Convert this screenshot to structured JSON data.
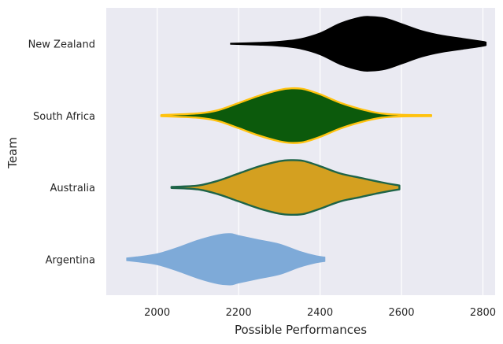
{
  "chart_data": {
    "type": "violin",
    "orientation": "horizontal",
    "title": "",
    "xlabel": "Possible Performances",
    "ylabel": "Team",
    "xlim": [
      1875,
      2830
    ],
    "xticks": [
      2000,
      2200,
      2400,
      2600,
      2800
    ],
    "grid": true,
    "background": "#eaeaf2",
    "series": [
      {
        "name": "New Zealand",
        "fill": "#000000",
        "edge": "#000000",
        "profile": [
          [
            2180,
            0.02
          ],
          [
            2250,
            0.05
          ],
          [
            2300,
            0.09
          ],
          [
            2350,
            0.18
          ],
          [
            2400,
            0.4
          ],
          [
            2450,
            0.76
          ],
          [
            2500,
            0.98
          ],
          [
            2525,
            1.0
          ],
          [
            2560,
            0.94
          ],
          [
            2600,
            0.74
          ],
          [
            2650,
            0.48
          ],
          [
            2700,
            0.31
          ],
          [
            2750,
            0.2
          ],
          [
            2800,
            0.09
          ],
          [
            2808,
            0.06
          ]
        ]
      },
      {
        "name": "South Africa",
        "fill": "#0c5a0c",
        "edge": "#ffc20e",
        "profile": [
          [
            2010,
            0.02
          ],
          [
            2100,
            0.08
          ],
          [
            2150,
            0.2
          ],
          [
            2200,
            0.46
          ],
          [
            2250,
            0.73
          ],
          [
            2300,
            0.94
          ],
          [
            2330,
            1.0
          ],
          [
            2360,
            0.97
          ],
          [
            2400,
            0.78
          ],
          [
            2450,
            0.47
          ],
          [
            2500,
            0.24
          ],
          [
            2550,
            0.08
          ],
          [
            2600,
            0.03
          ],
          [
            2673,
            0.02
          ]
        ]
      },
      {
        "name": "Australia",
        "fill": "#d4a020",
        "edge": "#1e6448",
        "profile": [
          [
            2035,
            0.02
          ],
          [
            2100,
            0.07
          ],
          [
            2150,
            0.25
          ],
          [
            2200,
            0.51
          ],
          [
            2250,
            0.77
          ],
          [
            2300,
            0.96
          ],
          [
            2330,
            1.0
          ],
          [
            2360,
            0.97
          ],
          [
            2400,
            0.78
          ],
          [
            2450,
            0.51
          ],
          [
            2500,
            0.35
          ],
          [
            2550,
            0.19
          ],
          [
            2595,
            0.07
          ]
        ]
      },
      {
        "name": "Argentina",
        "fill": "#7eaad8",
        "edge": "#7eaad8",
        "profile": [
          [
            1925,
            0.05
          ],
          [
            1950,
            0.09
          ],
          [
            2000,
            0.2
          ],
          [
            2050,
            0.43
          ],
          [
            2100,
            0.7
          ],
          [
            2150,
            0.9
          ],
          [
            2180,
            0.94
          ],
          [
            2200,
            0.87
          ],
          [
            2250,
            0.71
          ],
          [
            2300,
            0.56
          ],
          [
            2350,
            0.29
          ],
          [
            2390,
            0.13
          ],
          [
            2412,
            0.08
          ]
        ]
      }
    ]
  }
}
